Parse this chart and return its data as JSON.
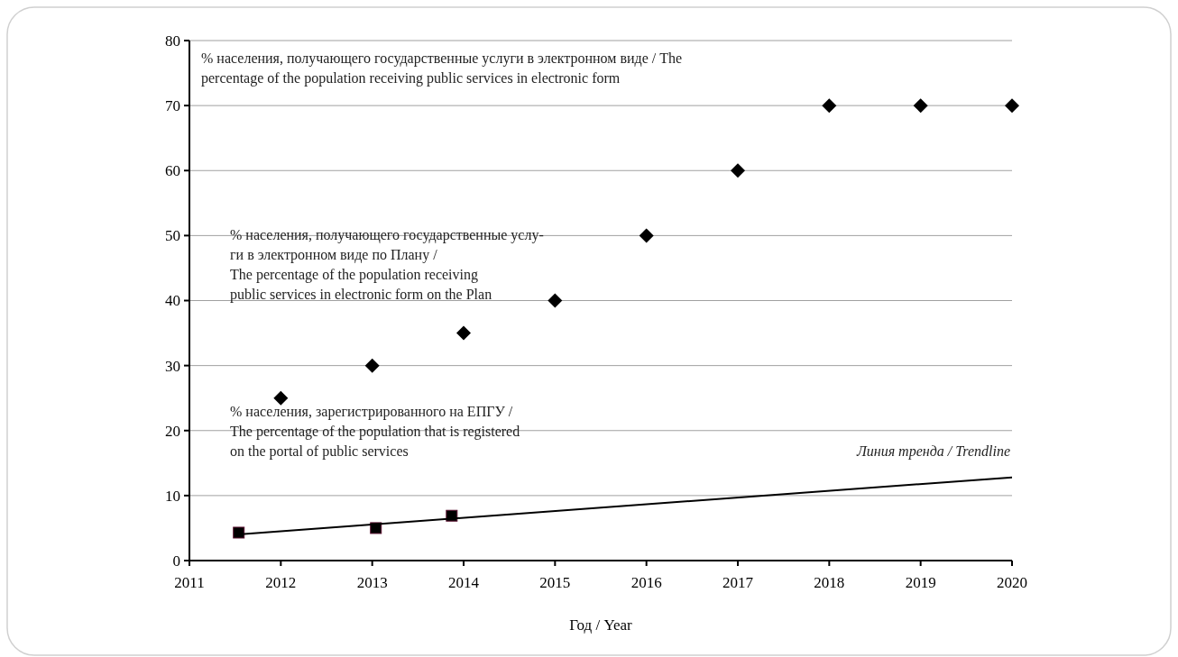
{
  "chart_data": {
    "type": "scatter",
    "xlabel": "Год / Year",
    "xlim": [
      2011,
      2020
    ],
    "xticks": [
      2011,
      2012,
      2013,
      2014,
      2015,
      2016,
      2017,
      2018,
      2019,
      2020
    ],
    "ylim": [
      0,
      80
    ],
    "yticks": [
      0,
      10,
      20,
      30,
      40,
      50,
      60,
      70,
      80
    ],
    "grid": "y",
    "series": [
      {
        "marker": "diamond",
        "color": "#000000",
        "x": [
          2012,
          2013,
          2014,
          2015,
          2016,
          2017,
          2018,
          2019,
          2020
        ],
        "values": [
          25,
          30,
          35,
          40,
          50,
          60,
          70,
          70,
          70
        ]
      },
      {
        "marker": "square",
        "color": "#000000",
        "x": [
          2011.54,
          2013.04,
          2013.87
        ],
        "values": [
          4.3,
          5,
          6.9
        ]
      },
      {
        "type": "line",
        "color": "#000000",
        "x": [
          2011.5,
          2020
        ],
        "values": [
          4,
          12.8
        ]
      }
    ],
    "annotations": [
      "% населения, получающего государственные услуги в электронном виде / The\npercentage of the population receiving public services in electronic form",
      "% населения, получающего государственные услу-\nги в электронном виде по Плану /\nThe percentage of the population receiving\npublic services in electronic form on the Plan",
      "% населения, зарегистрированного на ЕПГУ /\nThe percentage of the population that is registered\non the portal of public services",
      {
        "text": "Линия тренда / Trendline",
        "x": 2020,
        "y": 12.8
      }
    ]
  }
}
